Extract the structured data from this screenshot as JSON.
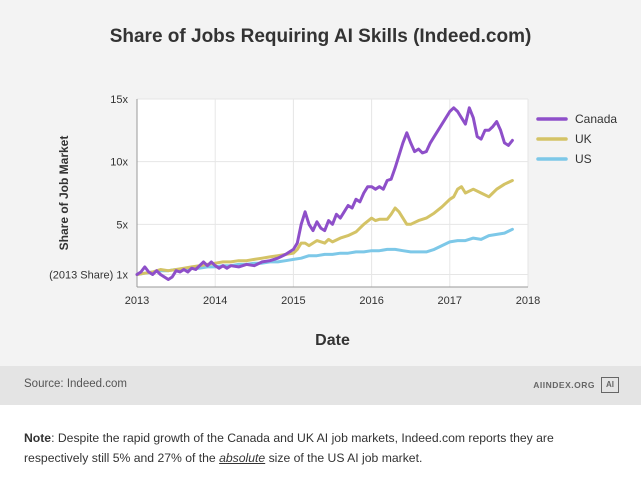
{
  "chart_data": {
    "type": "line",
    "title": "Share of Jobs Requiring AI Skills (Indeed.com)",
    "xlabel": "Date",
    "ylabel": "Share of Job Market",
    "xlim": [
      2013,
      2018
    ],
    "ylim": [
      0,
      15
    ],
    "x_ticks": [
      "2013",
      "2014",
      "2015",
      "2016",
      "2017",
      "2018"
    ],
    "y_ticks": [
      {
        "value": 1,
        "label": "(2013 Share) 1x"
      },
      {
        "value": 5,
        "label": "5x"
      },
      {
        "value": 10,
        "label": "10x"
      },
      {
        "value": 15,
        "label": "15x"
      }
    ],
    "legend": "right",
    "series": [
      {
        "name": "Canada",
        "color": "#8e4fc9",
        "points": [
          [
            2013.0,
            1
          ],
          [
            2013.05,
            1.2
          ],
          [
            2013.1,
            1.6
          ],
          [
            2013.15,
            1.2
          ],
          [
            2013.2,
            1.0
          ],
          [
            2013.25,
            1.3
          ],
          [
            2013.3,
            1.0
          ],
          [
            2013.35,
            0.8
          ],
          [
            2013.4,
            0.6
          ],
          [
            2013.45,
            0.8
          ],
          [
            2013.5,
            1.3
          ],
          [
            2013.55,
            1.2
          ],
          [
            2013.6,
            1.4
          ],
          [
            2013.65,
            1.2
          ],
          [
            2013.7,
            1.5
          ],
          [
            2013.75,
            1.4
          ],
          [
            2013.8,
            1.7
          ],
          [
            2013.85,
            2.0
          ],
          [
            2013.9,
            1.7
          ],
          [
            2013.95,
            2.0
          ],
          [
            2014.0,
            1.7
          ],
          [
            2014.05,
            1.5
          ],
          [
            2014.1,
            1.7
          ],
          [
            2014.15,
            1.5
          ],
          [
            2014.2,
            1.7
          ],
          [
            2014.3,
            1.6
          ],
          [
            2014.4,
            1.8
          ],
          [
            2014.5,
            1.7
          ],
          [
            2014.6,
            2.0
          ],
          [
            2014.7,
            2.1
          ],
          [
            2014.8,
            2.3
          ],
          [
            2014.9,
            2.6
          ],
          [
            2015.0,
            3.0
          ],
          [
            2015.05,
            3.5
          ],
          [
            2015.1,
            5.0
          ],
          [
            2015.15,
            6.0
          ],
          [
            2015.2,
            5.0
          ],
          [
            2015.25,
            4.5
          ],
          [
            2015.3,
            5.2
          ],
          [
            2015.35,
            4.7
          ],
          [
            2015.4,
            4.5
          ],
          [
            2015.45,
            5.3
          ],
          [
            2015.5,
            5.0
          ],
          [
            2015.55,
            5.8
          ],
          [
            2015.6,
            5.5
          ],
          [
            2015.65,
            6.0
          ],
          [
            2015.7,
            6.5
          ],
          [
            2015.75,
            6.3
          ],
          [
            2015.8,
            7.0
          ],
          [
            2015.85,
            6.8
          ],
          [
            2015.9,
            7.5
          ],
          [
            2015.95,
            8.0
          ],
          [
            2016.0,
            8.0
          ],
          [
            2016.05,
            7.8
          ],
          [
            2016.1,
            8.0
          ],
          [
            2016.15,
            7.8
          ],
          [
            2016.2,
            8.5
          ],
          [
            2016.25,
            8.6
          ],
          [
            2016.3,
            9.5
          ],
          [
            2016.35,
            10.5
          ],
          [
            2016.4,
            11.5
          ],
          [
            2016.45,
            12.3
          ],
          [
            2016.5,
            11.5
          ],
          [
            2016.55,
            10.8
          ],
          [
            2016.6,
            11.0
          ],
          [
            2016.65,
            10.7
          ],
          [
            2016.7,
            10.8
          ],
          [
            2016.75,
            11.5
          ],
          [
            2016.8,
            12.0
          ],
          [
            2016.85,
            12.5
          ],
          [
            2016.9,
            13.0
          ],
          [
            2016.95,
            13.5
          ],
          [
            2017.0,
            14.0
          ],
          [
            2017.05,
            14.3
          ],
          [
            2017.1,
            14.0
          ],
          [
            2017.15,
            13.5
          ],
          [
            2017.2,
            13.0
          ],
          [
            2017.25,
            14.3
          ],
          [
            2017.3,
            13.5
          ],
          [
            2017.35,
            12.0
          ],
          [
            2017.4,
            11.8
          ],
          [
            2017.45,
            12.5
          ],
          [
            2017.5,
            12.5
          ],
          [
            2017.55,
            12.8
          ],
          [
            2017.6,
            13.2
          ],
          [
            2017.65,
            12.5
          ],
          [
            2017.7,
            11.5
          ],
          [
            2017.75,
            11.3
          ],
          [
            2017.8,
            11.7
          ]
        ]
      },
      {
        "name": "UK",
        "color": "#d4c366",
        "points": [
          [
            2013.0,
            1
          ],
          [
            2013.1,
            1.1
          ],
          [
            2013.2,
            1.2
          ],
          [
            2013.3,
            1.4
          ],
          [
            2013.4,
            1.3
          ],
          [
            2013.5,
            1.4
          ],
          [
            2013.6,
            1.5
          ],
          [
            2013.7,
            1.6
          ],
          [
            2013.8,
            1.7
          ],
          [
            2013.9,
            1.8
          ],
          [
            2014.0,
            1.9
          ],
          [
            2014.1,
            2.0
          ],
          [
            2014.2,
            2.0
          ],
          [
            2014.3,
            2.1
          ],
          [
            2014.4,
            2.1
          ],
          [
            2014.5,
            2.2
          ],
          [
            2014.6,
            2.3
          ],
          [
            2014.7,
            2.4
          ],
          [
            2014.8,
            2.5
          ],
          [
            2014.9,
            2.6
          ],
          [
            2015.0,
            2.7
          ],
          [
            2015.05,
            3.0
          ],
          [
            2015.1,
            3.5
          ],
          [
            2015.15,
            3.5
          ],
          [
            2015.2,
            3.3
          ],
          [
            2015.3,
            3.7
          ],
          [
            2015.4,
            3.5
          ],
          [
            2015.45,
            3.8
          ],
          [
            2015.5,
            3.6
          ],
          [
            2015.6,
            3.9
          ],
          [
            2015.7,
            4.1
          ],
          [
            2015.8,
            4.4
          ],
          [
            2015.9,
            5.0
          ],
          [
            2016.0,
            5.5
          ],
          [
            2016.05,
            5.3
          ],
          [
            2016.1,
            5.4
          ],
          [
            2016.2,
            5.4
          ],
          [
            2016.25,
            5.8
          ],
          [
            2016.3,
            6.3
          ],
          [
            2016.35,
            6.0
          ],
          [
            2016.4,
            5.5
          ],
          [
            2016.45,
            5.0
          ],
          [
            2016.5,
            5.0
          ],
          [
            2016.6,
            5.3
          ],
          [
            2016.7,
            5.5
          ],
          [
            2016.8,
            5.9
          ],
          [
            2016.9,
            6.4
          ],
          [
            2017.0,
            7.0
          ],
          [
            2017.05,
            7.2
          ],
          [
            2017.1,
            7.8
          ],
          [
            2017.15,
            8.0
          ],
          [
            2017.2,
            7.5
          ],
          [
            2017.3,
            7.8
          ],
          [
            2017.4,
            7.5
          ],
          [
            2017.5,
            7.2
          ],
          [
            2017.55,
            7.5
          ],
          [
            2017.6,
            7.8
          ],
          [
            2017.7,
            8.2
          ],
          [
            2017.8,
            8.5
          ]
        ]
      },
      {
        "name": "US",
        "color": "#7dc8e8",
        "points": [
          [
            2013.0,
            1
          ],
          [
            2013.1,
            1.1
          ],
          [
            2013.2,
            1.2
          ],
          [
            2013.3,
            1.3
          ],
          [
            2013.4,
            1.3
          ],
          [
            2013.5,
            1.4
          ],
          [
            2013.6,
            1.4
          ],
          [
            2013.7,
            1.5
          ],
          [
            2013.8,
            1.5
          ],
          [
            2013.9,
            1.6
          ],
          [
            2014.0,
            1.6
          ],
          [
            2014.1,
            1.7
          ],
          [
            2014.2,
            1.7
          ],
          [
            2014.3,
            1.8
          ],
          [
            2014.4,
            1.8
          ],
          [
            2014.5,
            1.9
          ],
          [
            2014.6,
            1.9
          ],
          [
            2014.7,
            2.0
          ],
          [
            2014.8,
            2.0
          ],
          [
            2014.9,
            2.1
          ],
          [
            2015.0,
            2.2
          ],
          [
            2015.1,
            2.3
          ],
          [
            2015.2,
            2.5
          ],
          [
            2015.3,
            2.5
          ],
          [
            2015.4,
            2.6
          ],
          [
            2015.5,
            2.6
          ],
          [
            2015.6,
            2.7
          ],
          [
            2015.7,
            2.7
          ],
          [
            2015.8,
            2.8
          ],
          [
            2015.9,
            2.8
          ],
          [
            2016.0,
            2.9
          ],
          [
            2016.1,
            2.9
          ],
          [
            2016.2,
            3.0
          ],
          [
            2016.3,
            3.0
          ],
          [
            2016.4,
            2.9
          ],
          [
            2016.5,
            2.8
          ],
          [
            2016.6,
            2.8
          ],
          [
            2016.7,
            2.8
          ],
          [
            2016.8,
            3.0
          ],
          [
            2016.9,
            3.3
          ],
          [
            2017.0,
            3.6
          ],
          [
            2017.1,
            3.7
          ],
          [
            2017.2,
            3.7
          ],
          [
            2017.3,
            3.9
          ],
          [
            2017.4,
            3.8
          ],
          [
            2017.5,
            4.1
          ],
          [
            2017.6,
            4.2
          ],
          [
            2017.7,
            4.3
          ],
          [
            2017.8,
            4.6
          ]
        ]
      }
    ]
  },
  "footer": {
    "source": "Source: Indeed.com",
    "brand": "AIINDEX.ORG",
    "logo_text": "AI"
  },
  "note": {
    "label": "Note",
    "text_before": ": Despite the rapid growth of the Canada and UK AI job markets, Indeed.com reports they are respectively still 5% and 27% of the ",
    "emphasis": "absolute",
    "text_after": " size of the US AI job market."
  }
}
